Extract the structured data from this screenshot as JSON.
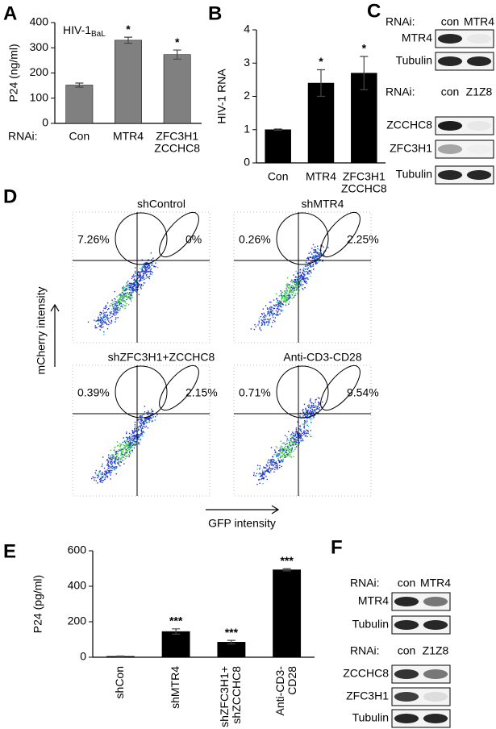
{
  "chart_data": [
    {
      "type": "bar",
      "panel": "A",
      "ylabel": "P24 (ng/ml)",
      "annotation": "HIV-1",
      "annotation_subscript": "BaL",
      "row_label": "RNAi:",
      "categories": [
        "Con",
        "MTR4",
        [
          "ZFC3H1",
          "ZCCHC8"
        ]
      ],
      "values": [
        152,
        330,
        273
      ],
      "errors": [
        8,
        12,
        18
      ],
      "significance": [
        null,
        "*",
        "*"
      ],
      "color": "#808080",
      "ylim": [
        0,
        400
      ],
      "yticks": [
        0,
        100,
        200,
        300,
        400
      ]
    },
    {
      "type": "bar",
      "panel": "B",
      "ylabel": "HIV-1 RNA",
      "categories": [
        "Con",
        "MTR4",
        [
          "ZFC3H1",
          "ZCCHC8"
        ]
      ],
      "values": [
        1,
        2.4,
        2.7
      ],
      "errors": [
        0.02,
        0.4,
        0.5
      ],
      "significance": [
        null,
        "*",
        "*"
      ],
      "color": "#000000",
      "ylim": [
        0,
        4
      ],
      "yticks": [
        0,
        1,
        2,
        3,
        4
      ]
    },
    {
      "type": "bar",
      "panel": "E",
      "ylabel": "P24 (pg/ml)",
      "categories": [
        "shCon",
        "shMTR4",
        [
          "shZFC3H1+",
          "shZCCHC8"
        ],
        [
          "Anti-CD3-",
          "CD28"
        ]
      ],
      "values": [
        5,
        145,
        85,
        493
      ],
      "errors": [
        2,
        15,
        10,
        6
      ],
      "significance": [
        null,
        "***",
        "***",
        "***"
      ],
      "color": "#000000",
      "ylim": [
        0,
        600
      ],
      "yticks": [
        0,
        200,
        400,
        600
      ],
      "rotate_labels": true
    }
  ],
  "blots": [
    {
      "panel": "C",
      "groups": [
        {
          "row_label": "RNAi:",
          "lanes": [
            "con",
            "MTR4"
          ],
          "rows": [
            "MTR4",
            "Tubulin"
          ]
        },
        {
          "row_label": "RNAi:",
          "lanes": [
            "con",
            "Z1Z8"
          ],
          "rows": [
            "ZCCHC8",
            "ZFC3H1",
            "Tubulin"
          ]
        }
      ]
    },
    {
      "panel": "F",
      "groups": [
        {
          "row_label": "RNAi:",
          "lanes": [
            "con",
            "MTR4"
          ],
          "rows": [
            "MTR4",
            "Tubulin"
          ]
        },
        {
          "row_label": "RNAi:",
          "lanes": [
            "con",
            "Z1Z8"
          ],
          "rows": [
            "ZCCHC8",
            "ZFC3H1",
            "Tubulin"
          ]
        }
      ]
    }
  ],
  "flow": {
    "panel": "D",
    "y_label": "mCherry intensity",
    "x_label": "GFP intensity",
    "plots": [
      {
        "title": "shControl",
        "left": "7.26%",
        "right": "0%"
      },
      {
        "title": "shMTR4",
        "left": "0.26%",
        "right": "2.25%"
      },
      {
        "title": "shZFC3H1+ZCCHC8",
        "left": "0.39%",
        "right": "2.15%"
      },
      {
        "title": "Anti-CD3-CD28",
        "left": "0.71%",
        "right": "9.54%"
      }
    ]
  }
}
